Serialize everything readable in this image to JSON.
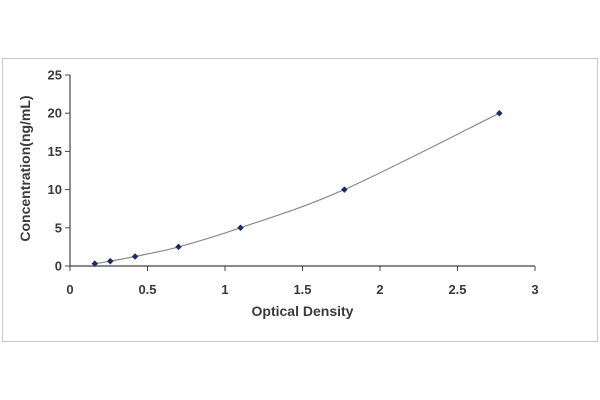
{
  "chart_data": {
    "type": "scatter",
    "title": "",
    "xlabel": "Optical Density",
    "ylabel": "Concentration(ng/mL)",
    "xlim": [
      0,
      3
    ],
    "ylim": [
      0,
      25
    ],
    "x_ticks": [
      0,
      0.5,
      1,
      1.5,
      2,
      2.5,
      3
    ],
    "x_tick_labels": [
      "0",
      "0.5",
      "1",
      "1.5",
      "2",
      "2.5",
      "3"
    ],
    "y_ticks": [
      0,
      5,
      10,
      15,
      20,
      25
    ],
    "y_tick_labels": [
      "0",
      "5",
      "10",
      "15",
      "20",
      "25"
    ],
    "grid": false,
    "legend": "none",
    "trendline": "smooth curve through points",
    "series": [
      {
        "x": [
          0.16,
          0.26,
          0.42,
          0.7,
          1.1,
          1.77,
          2.77
        ],
        "y": [
          0.31,
          0.63,
          1.25,
          2.5,
          5,
          10,
          20
        ]
      }
    ],
    "colors": {
      "marker": "#1a2a6c",
      "curve": "#8a8a8a",
      "axis": "#444444",
      "text": "#3a3a3a"
    }
  }
}
